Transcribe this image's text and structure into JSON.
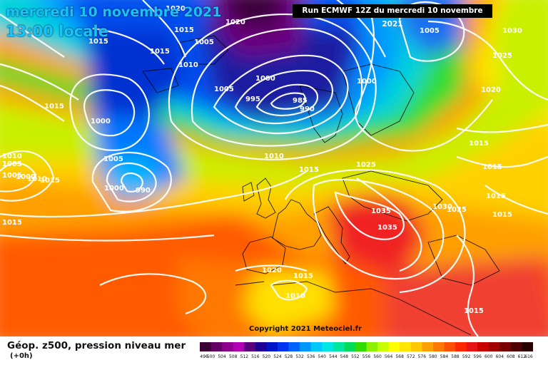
{
  "header": {
    "date_line": "mercredi 10 novembre 2021",
    "time_line": "13:00 locale",
    "run_info": "Run ECMWF 12Z du mercredi 10 novembre 2021"
  },
  "copyright": "Copyright 2021 Meteociel.fr",
  "legend": {
    "title": "Géop. z500, pression niveau mer",
    "subtitle": "(+0h)",
    "ticks": [
      "496",
      "500",
      "504",
      "508",
      "512",
      "516",
      "520",
      "524",
      "528",
      "532",
      "536",
      "540",
      "544",
      "548",
      "552",
      "556",
      "560",
      "564",
      "568",
      "572",
      "576",
      "580",
      "584",
      "588",
      "592",
      "596",
      "600",
      "604",
      "608",
      "612",
      "616"
    ],
    "colors": [
      "#3b0033",
      "#640064",
      "#8c008c",
      "#b400b4",
      "#5a007c",
      "#1e0096",
      "#0014c8",
      "#0032f0",
      "#0064ff",
      "#0096ff",
      "#00c8ff",
      "#00e6e6",
      "#00e6a0",
      "#00dc5a",
      "#32dc00",
      "#8cf000",
      "#c8ff00",
      "#ffff00",
      "#ffe600",
      "#ffc800",
      "#ffa000",
      "#ff7800",
      "#ff5000",
      "#ff2800",
      "#e61414",
      "#c80000",
      "#a00000",
      "#780000",
      "#500000",
      "#280000"
    ]
  },
  "pressure_labels": [
    {
      "text": "1020"
    },
    {
      "text": "1015"
    },
    {
      "text": "1020"
    },
    {
      "text": "1005"
    },
    {
      "text": "1015"
    },
    {
      "text": "1010"
    },
    {
      "text": "1005"
    },
    {
      "text": "1000"
    },
    {
      "text": "995"
    },
    {
      "text": "985"
    },
    {
      "text": "990"
    },
    {
      "text": "1005"
    },
    {
      "text": "1000"
    },
    {
      "text": "1005"
    },
    {
      "text": "1030"
    },
    {
      "text": "1025"
    },
    {
      "text": "1020"
    },
    {
      "text": "1015"
    },
    {
      "text": "1015"
    },
    {
      "text": "1000"
    },
    {
      "text": "1005"
    },
    {
      "text": "1010"
    },
    {
      "text": "1015"
    },
    {
      "text": "1025"
    },
    {
      "text": "1000"
    },
    {
      "text": "990"
    },
    {
      "text": "1010"
    },
    {
      "text": "1005"
    },
    {
      "text": "1000"
    },
    {
      "text": "1010"
    },
    {
      "text": "1015"
    },
    {
      "text": "1015"
    },
    {
      "text": "1015"
    },
    {
      "text": "1035"
    },
    {
      "text": "1035"
    },
    {
      "text": "1030"
    },
    {
      "text": "1025"
    },
    {
      "text": "1015"
    },
    {
      "text": "1015"
    },
    {
      "text": "1020"
    },
    {
      "text": "1015"
    },
    {
      "text": "1010"
    },
    {
      "text": "1015"
    },
    {
      "text": "1015"
    }
  ]
}
